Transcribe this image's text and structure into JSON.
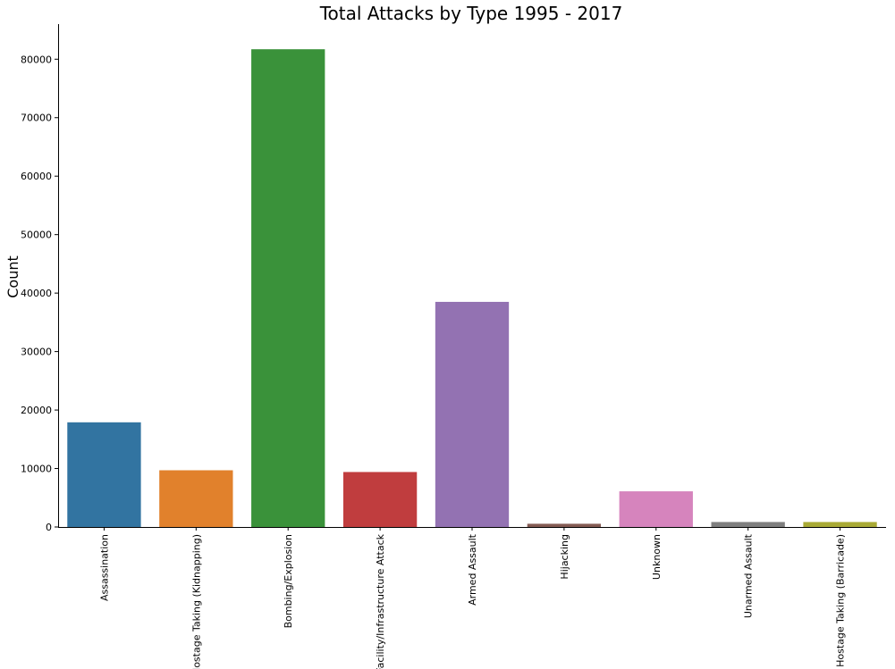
{
  "chart_data": {
    "type": "bar",
    "title": "Total Attacks by Type 1995 - 2017",
    "xlabel": "",
    "ylabel": "Count",
    "ylim": [
      0,
      86000
    ],
    "yticks": [
      0,
      10000,
      20000,
      30000,
      40000,
      50000,
      60000,
      70000,
      80000
    ],
    "ytick_labels": [
      "0",
      "10000",
      "20000",
      "30000",
      "40000",
      "50000",
      "60000",
      "70000",
      "80000"
    ],
    "grid": false,
    "categories": [
      "Assassination",
      "Hostage Taking (Kidnapping)",
      "Bombing/Explosion",
      "Facility/Infrastructure Attack",
      "Armed Assault",
      "Hijacking",
      "Unknown",
      "Unarmed Assault",
      "Hostage Taking (Barricade)"
    ],
    "values": [
      17900,
      9700,
      81700,
      9400,
      38500,
      550,
      6100,
      850,
      850
    ],
    "colors": [
      "#3274a1",
      "#e1812c",
      "#3a923a",
      "#c03d3e",
      "#9372b2",
      "#845b53",
      "#d684bd",
      "#7f7f7f",
      "#a9aa35"
    ]
  }
}
